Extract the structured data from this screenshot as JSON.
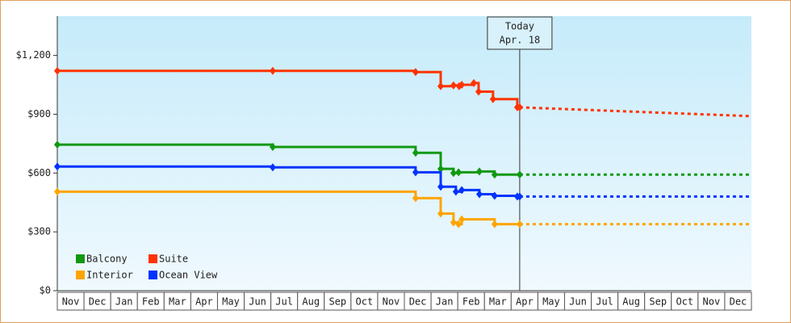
{
  "chart_data": {
    "type": "step-line",
    "categories": [
      "Nov",
      "Dec",
      "Jan",
      "Feb",
      "Mar",
      "Apr",
      "May",
      "Jun",
      "Jul",
      "Aug",
      "Sep",
      "Oct",
      "Nov",
      "Dec",
      "Jan",
      "Feb",
      "Mar",
      "Apr",
      "May",
      "Jun",
      "Jul",
      "Aug",
      "Sep",
      "Oct",
      "Nov",
      "Dec"
    ],
    "xlim": [
      0,
      26
    ],
    "ylim": [
      0,
      1400
    ],
    "yticks": [
      {
        "value": 0,
        "label": "$0"
      },
      {
        "value": 300,
        "label": "$300"
      },
      {
        "value": 600,
        "label": "$600"
      },
      {
        "value": 900,
        "label": "$900"
      },
      {
        "value": 1200,
        "label": "$1,200"
      }
    ],
    "today": {
      "x": 17.32,
      "label": [
        "Today",
        "Apr. 18"
      ]
    },
    "series": [
      {
        "name": "Balcony",
        "color": "#119911",
        "x": [
          0,
          8.07,
          13.42,
          14.36,
          14.84,
          15.03,
          15.81,
          16.38
        ],
        "values": [
          745,
          733,
          703,
          621,
          600,
          604,
          608,
          592
        ],
        "forecast": {
          "x": [
            17.32,
            26
          ],
          "values": [
            592,
            592
          ]
        }
      },
      {
        "name": "Suite",
        "color": "#ff3300",
        "x": [
          0,
          8.07,
          13.42,
          14.36,
          14.84,
          15.05,
          15.15,
          15.6,
          15.78,
          16.32,
          17.23
        ],
        "values": [
          1121,
          1121,
          1115,
          1043,
          1047,
          1043,
          1050,
          1059,
          1015,
          977,
          935
        ],
        "forecast": {
          "x": [
            17.32,
            26
          ],
          "values": [
            935,
            890
          ]
        }
      },
      {
        "name": "Interior",
        "color": "#ffa500",
        "x": [
          0,
          13.42,
          14.36,
          14.84,
          15.03,
          15.15,
          16.38
        ],
        "values": [
          505,
          472,
          393,
          348,
          339,
          364,
          339
        ],
        "forecast": {
          "x": [
            17.32,
            26
          ],
          "values": [
            339,
            339
          ]
        }
      },
      {
        "name": "Ocean View",
        "color": "#0033ff",
        "x": [
          0,
          8.07,
          13.42,
          14.36,
          14.93,
          15.15,
          15.81,
          16.38,
          17.23
        ],
        "values": [
          633,
          629,
          604,
          530,
          505,
          513,
          492,
          484,
          480
        ],
        "forecast": {
          "x": [
            17.32,
            26
          ],
          "values": [
            480,
            480
          ]
        }
      }
    ]
  }
}
